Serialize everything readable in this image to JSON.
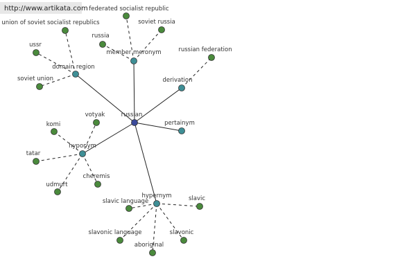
{
  "watermark": "http://www.artikata.com",
  "center": {
    "label": "russian"
  },
  "relations": [
    {
      "label": "member meronym",
      "leaves": [
        {
          "label": "federated socialist republic"
        },
        {
          "label": "soviet russia"
        },
        {
          "label": "russia"
        }
      ]
    },
    {
      "label": "domain region",
      "leaves": [
        {
          "label": "union of soviet socialist republics"
        },
        {
          "label": "ussr"
        },
        {
          "label": "soviet union"
        }
      ]
    },
    {
      "label": "derivation",
      "leaves": [
        {
          "label": "russian federation"
        }
      ]
    },
    {
      "label": "pertainym",
      "leaves": []
    },
    {
      "label": "hyponym",
      "leaves": [
        {
          "label": "votyak"
        },
        {
          "label": "komi"
        },
        {
          "label": "tatar"
        },
        {
          "label": "udmurt"
        },
        {
          "label": "cheremis"
        }
      ]
    },
    {
      "label": "hypernym",
      "leaves": [
        {
          "label": "slavic language"
        },
        {
          "label": "slavic"
        },
        {
          "label": "slavonic language"
        },
        {
          "label": "aboriginal"
        },
        {
          "label": "slavonic"
        }
      ]
    }
  ]
}
